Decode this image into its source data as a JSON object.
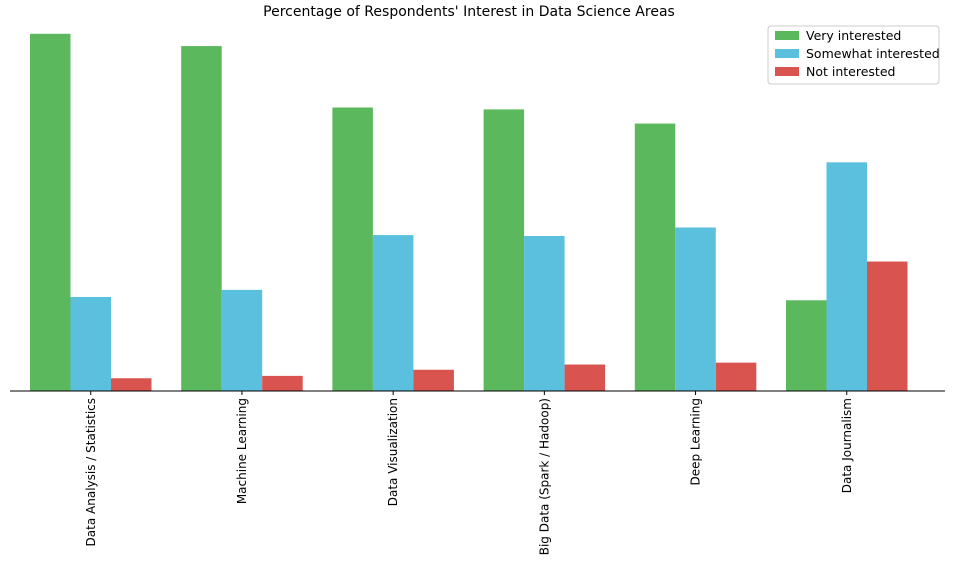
{
  "chart_data": {
    "type": "bar",
    "title": "Percentage of Respondents' Interest in Data Science Areas",
    "xlabel": "",
    "ylabel": "",
    "categories": [
      "Data Analysis / Statistics",
      "Machine Learning",
      "Data Visualization",
      "Big Data (Spark / Hadoop)",
      "Deep Learning",
      "Data Journalism"
    ],
    "series": [
      {
        "name": "Very interested",
        "color": "#5cb85c",
        "values": [
          75.6,
          73.0,
          60.0,
          59.6,
          56.6,
          19.2
        ]
      },
      {
        "name": "Somewhat interested",
        "color": "#5bc0de",
        "values": [
          19.9,
          21.4,
          33.0,
          32.8,
          34.6,
          48.4
        ]
      },
      {
        "name": "Not interested",
        "color": "#d9534f",
        "values": [
          2.7,
          3.2,
          4.5,
          5.6,
          6.0,
          27.4
        ]
      }
    ],
    "ylim": [
      0,
      80
    ],
    "grid": false,
    "legend_position": "top-right"
  }
}
